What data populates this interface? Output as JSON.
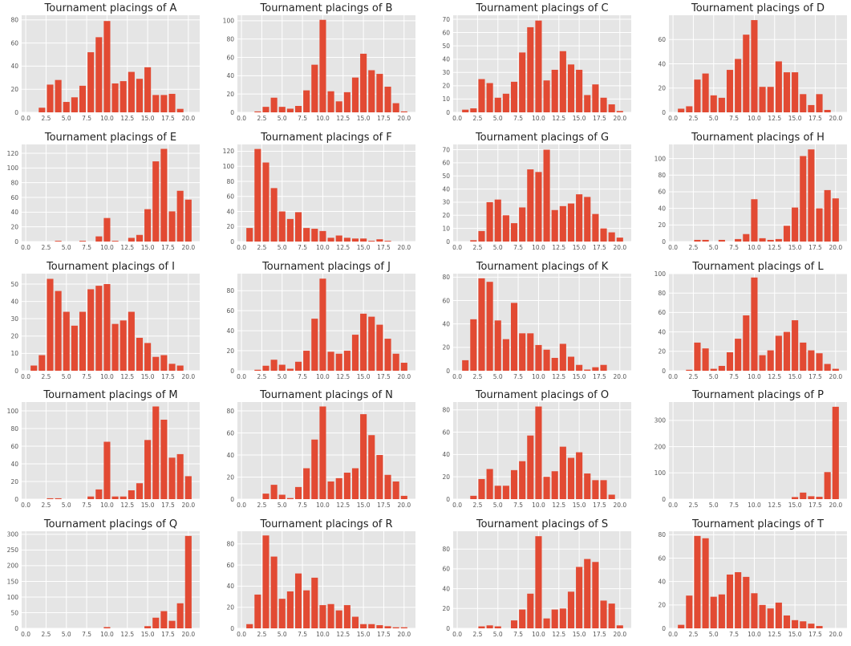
{
  "figure": {
    "background": "#ffffff",
    "panel_background": "#e5e5e5",
    "grid_color": "#ffffff",
    "bar_color": "#e24a33"
  },
  "chart_data": [
    {
      "type": "bar",
      "title": "Tournament placings of A",
      "categories": [
        1,
        2,
        3,
        4,
        5,
        6,
        7,
        8,
        9,
        10,
        11,
        12,
        13,
        14,
        15,
        16,
        17,
        18,
        19,
        20
      ],
      "values": [
        0,
        4,
        24,
        28,
        9,
        13,
        23,
        52,
        65,
        79,
        25,
        27,
        35,
        29,
        39,
        15,
        15,
        16,
        3,
        0
      ],
      "ylim": [
        0,
        84
      ],
      "yticks": [
        0,
        20,
        40,
        60,
        80
      ],
      "xticks": [
        0.0,
        2.5,
        5.0,
        7.5,
        10.0,
        12.5,
        15.0,
        17.5,
        20.0
      ],
      "grid": true
    },
    {
      "type": "bar",
      "title": "Tournament placings of B",
      "categories": [
        1,
        2,
        3,
        4,
        5,
        6,
        7,
        8,
        9,
        10,
        11,
        12,
        13,
        14,
        15,
        16,
        17,
        18,
        19,
        20
      ],
      "values": [
        0,
        1,
        6,
        16,
        6,
        4,
        7,
        24,
        52,
        101,
        23,
        12,
        22,
        38,
        64,
        46,
        42,
        28,
        10,
        1
      ],
      "ylim": [
        0,
        106
      ],
      "yticks": [
        0,
        20,
        40,
        60,
        80,
        100
      ],
      "xticks": [
        0.0,
        2.5,
        5.0,
        7.5,
        10.0,
        12.5,
        15.0,
        17.5,
        20.0
      ],
      "grid": true
    },
    {
      "type": "bar",
      "title": "Tournament placings of C",
      "categories": [
        1,
        2,
        3,
        4,
        5,
        6,
        7,
        8,
        9,
        10,
        11,
        12,
        13,
        14,
        15,
        16,
        17,
        18,
        19,
        20
      ],
      "values": [
        2,
        3,
        25,
        22,
        11,
        14,
        23,
        45,
        64,
        69,
        24,
        32,
        46,
        36,
        32,
        13,
        21,
        11,
        6,
        1
      ],
      "ylim": [
        0,
        73
      ],
      "yticks": [
        0,
        10,
        20,
        30,
        40,
        50,
        60,
        70
      ],
      "xticks": [
        0.0,
        2.5,
        5.0,
        7.5,
        10.0,
        12.5,
        15.0,
        17.5,
        20.0
      ],
      "grid": true
    },
    {
      "type": "bar",
      "title": "Tournament placings of D",
      "categories": [
        1,
        2,
        3,
        4,
        5,
        6,
        7,
        8,
        9,
        10,
        11,
        12,
        13,
        14,
        15,
        16,
        17,
        18,
        19,
        20
      ],
      "values": [
        3,
        5,
        27,
        32,
        14,
        12,
        35,
        44,
        64,
        76,
        21,
        21,
        42,
        33,
        33,
        15,
        6,
        15,
        2,
        0
      ],
      "ylim": [
        0,
        80
      ],
      "yticks": [
        0,
        20,
        40,
        60
      ],
      "xticks": [
        0.0,
        2.5,
        5.0,
        7.5,
        10.0,
        12.5,
        15.0,
        17.5,
        20.0
      ],
      "grid": true
    },
    {
      "type": "bar",
      "title": "Tournament placings of E",
      "categories": [
        1,
        2,
        3,
        4,
        5,
        6,
        7,
        8,
        9,
        10,
        11,
        12,
        13,
        14,
        15,
        16,
        17,
        18,
        19,
        20
      ],
      "values": [
        0,
        0,
        0,
        1,
        0,
        0,
        1,
        0,
        7,
        32,
        1,
        0,
        5,
        9,
        44,
        109,
        126,
        41,
        69,
        57
      ],
      "ylim": [
        0,
        132
      ],
      "yticks": [
        0,
        20,
        40,
        60,
        80,
        100,
        120
      ],
      "xticks": [
        0.0,
        2.5,
        5.0,
        7.5,
        10.0,
        12.5,
        15.0,
        17.5,
        20.0
      ],
      "grid": true
    },
    {
      "type": "bar",
      "title": "Tournament placings of F",
      "categories": [
        1,
        2,
        3,
        4,
        5,
        6,
        7,
        8,
        9,
        10,
        11,
        12,
        13,
        14,
        15,
        16,
        17,
        18,
        19,
        20
      ],
      "values": [
        18,
        123,
        105,
        71,
        40,
        30,
        39,
        18,
        17,
        14,
        5,
        8,
        5,
        4,
        4,
        1,
        3,
        1,
        0,
        0
      ],
      "ylim": [
        0,
        129
      ],
      "yticks": [
        0,
        20,
        40,
        60,
        80,
        100,
        120
      ],
      "xticks": [
        0.0,
        2.5,
        5.0,
        7.5,
        10.0,
        12.5,
        15.0,
        17.5,
        20.0
      ],
      "grid": true
    },
    {
      "type": "bar",
      "title": "Tournament placings of G",
      "categories": [
        1,
        2,
        3,
        4,
        5,
        6,
        7,
        8,
        9,
        10,
        11,
        12,
        13,
        14,
        15,
        16,
        17,
        18,
        19,
        20
      ],
      "values": [
        0,
        1,
        8,
        30,
        32,
        20,
        14,
        26,
        55,
        53,
        70,
        24,
        27,
        29,
        36,
        34,
        21,
        10,
        7,
        3
      ],
      "ylim": [
        0,
        74
      ],
      "yticks": [
        0,
        10,
        20,
        30,
        40,
        50,
        60,
        70
      ],
      "xticks": [
        0.0,
        2.5,
        5.0,
        7.5,
        10.0,
        12.5,
        15.0,
        17.5,
        20.0
      ],
      "grid": true
    },
    {
      "type": "bar",
      "title": "Tournament placings of H",
      "categories": [
        1,
        2,
        3,
        4,
        5,
        6,
        7,
        8,
        9,
        10,
        11,
        12,
        13,
        14,
        15,
        16,
        17,
        18,
        19,
        20
      ],
      "values": [
        0,
        0,
        2,
        2,
        0,
        2,
        0,
        3,
        9,
        51,
        4,
        2,
        3,
        19,
        41,
        103,
        111,
        40,
        62,
        52
      ],
      "ylim": [
        0,
        117
      ],
      "yticks": [
        0,
        20,
        40,
        60,
        80,
        100
      ],
      "xticks": [
        0.0,
        2.5,
        5.0,
        7.5,
        10.0,
        12.5,
        15.0,
        17.5,
        20.0
      ],
      "grid": true
    },
    {
      "type": "bar",
      "title": "Tournament placings of I",
      "categories": [
        1,
        2,
        3,
        4,
        5,
        6,
        7,
        8,
        9,
        10,
        11,
        12,
        13,
        14,
        15,
        16,
        17,
        18,
        19,
        20
      ],
      "values": [
        3,
        9,
        53,
        46,
        34,
        26,
        34,
        47,
        49,
        50,
        27,
        29,
        34,
        19,
        16,
        8,
        9,
        4,
        3,
        0
      ],
      "ylim": [
        0,
        56
      ],
      "yticks": [
        0,
        10,
        20,
        30,
        40,
        50
      ],
      "xticks": [
        0.0,
        2.5,
        5.0,
        7.5,
        10.0,
        12.5,
        15.0,
        17.5,
        20.0
      ],
      "grid": true
    },
    {
      "type": "bar",
      "title": "Tournament placings of J",
      "categories": [
        1,
        2,
        3,
        4,
        5,
        6,
        7,
        8,
        9,
        10,
        11,
        12,
        13,
        14,
        15,
        16,
        17,
        18,
        19,
        20
      ],
      "values": [
        0,
        1,
        5,
        11,
        6,
        2,
        9,
        20,
        52,
        92,
        19,
        17,
        20,
        36,
        57,
        54,
        46,
        32,
        17,
        8
      ],
      "ylim": [
        0,
        97
      ],
      "yticks": [
        0,
        20,
        40,
        60,
        80
      ],
      "xticks": [
        0.0,
        2.5,
        5.0,
        7.5,
        10.0,
        12.5,
        15.0,
        17.5,
        20.0
      ],
      "grid": true
    },
    {
      "type": "bar",
      "title": "Tournament placings of K",
      "categories": [
        1,
        2,
        3,
        4,
        5,
        6,
        7,
        8,
        9,
        10,
        11,
        12,
        13,
        14,
        15,
        16,
        17,
        18,
        19,
        20
      ],
      "values": [
        9,
        44,
        79,
        76,
        43,
        27,
        58,
        32,
        32,
        22,
        18,
        11,
        23,
        12,
        5,
        1,
        3,
        5,
        0,
        0
      ],
      "ylim": [
        0,
        83
      ],
      "yticks": [
        0,
        20,
        40,
        60,
        80
      ],
      "xticks": [
        0.0,
        2.5,
        5.0,
        7.5,
        10.0,
        12.5,
        15.0,
        17.5,
        20.0
      ],
      "grid": true
    },
    {
      "type": "bar",
      "title": "Tournament placings of L",
      "categories": [
        1,
        2,
        3,
        4,
        5,
        6,
        7,
        8,
        9,
        10,
        11,
        12,
        13,
        14,
        15,
        16,
        17,
        18,
        19,
        20
      ],
      "values": [
        0,
        1,
        29,
        23,
        2,
        5,
        19,
        33,
        57,
        96,
        16,
        21,
        36,
        40,
        52,
        29,
        21,
        18,
        7,
        2
      ],
      "ylim": [
        0,
        100
      ],
      "yticks": [
        0,
        20,
        40,
        60,
        80,
        100
      ],
      "xticks": [
        0.0,
        2.5,
        5.0,
        7.5,
        10.0,
        12.5,
        15.0,
        17.5,
        20.0
      ],
      "grid": true
    },
    {
      "type": "bar",
      "title": "Tournament placings of M",
      "categories": [
        1,
        2,
        3,
        4,
        5,
        6,
        7,
        8,
        9,
        10,
        11,
        12,
        13,
        14,
        15,
        16,
        17,
        18,
        19,
        20
      ],
      "values": [
        0,
        0,
        1,
        1,
        0,
        0,
        0,
        3,
        11,
        65,
        3,
        3,
        10,
        18,
        67,
        105,
        90,
        47,
        51,
        26
      ],
      "ylim": [
        0,
        110
      ],
      "yticks": [
        0,
        20,
        40,
        60,
        80,
        100
      ],
      "xticks": [
        0.0,
        2.5,
        5.0,
        7.5,
        10.0,
        12.5,
        15.0,
        17.5,
        20.0
      ],
      "grid": true
    },
    {
      "type": "bar",
      "title": "Tournament placings of N",
      "categories": [
        1,
        2,
        3,
        4,
        5,
        6,
        7,
        8,
        9,
        10,
        11,
        12,
        13,
        14,
        15,
        16,
        17,
        18,
        19,
        20
      ],
      "values": [
        0,
        0,
        5,
        13,
        4,
        1,
        11,
        28,
        54,
        84,
        16,
        19,
        24,
        28,
        77,
        58,
        40,
        22,
        16,
        3
      ],
      "ylim": [
        0,
        88
      ],
      "yticks": [
        0,
        20,
        40,
        60,
        80
      ],
      "xticks": [
        0.0,
        2.5,
        5.0,
        7.5,
        10.0,
        12.5,
        15.0,
        17.5,
        20.0
      ],
      "grid": true
    },
    {
      "type": "bar",
      "title": "Tournament placings of O",
      "categories": [
        1,
        2,
        3,
        4,
        5,
        6,
        7,
        8,
        9,
        10,
        11,
        12,
        13,
        14,
        15,
        16,
        17,
        18,
        19,
        20
      ],
      "values": [
        0,
        3,
        18,
        27,
        12,
        12,
        26,
        34,
        57,
        83,
        20,
        25,
        47,
        37,
        42,
        23,
        17,
        17,
        4,
        0
      ],
      "ylim": [
        0,
        87
      ],
      "yticks": [
        0,
        20,
        40,
        60,
        80
      ],
      "xticks": [
        0.0,
        2.5,
        5.0,
        7.5,
        10.0,
        12.5,
        15.0,
        17.5,
        20.0
      ],
      "grid": true
    },
    {
      "type": "bar",
      "title": "Tournament placings of P",
      "categories": [
        1,
        2,
        3,
        4,
        5,
        6,
        7,
        8,
        9,
        10,
        11,
        12,
        13,
        14,
        15,
        16,
        17,
        18,
        19,
        20
      ],
      "values": [
        0,
        0,
        0,
        0,
        0,
        0,
        0,
        0,
        0,
        0,
        0,
        0,
        0,
        0,
        8,
        25,
        11,
        9,
        103,
        352
      ],
      "ylim": [
        0,
        370
      ],
      "yticks": [
        0,
        100,
        200,
        300
      ],
      "xticks": [
        0.0,
        2.5,
        5.0,
        7.5,
        10.0,
        12.5,
        15.0,
        17.5,
        20.0
      ],
      "grid": true
    },
    {
      "type": "bar",
      "title": "Tournament placings of Q",
      "categories": [
        1,
        2,
        3,
        4,
        5,
        6,
        7,
        8,
        9,
        10,
        11,
        12,
        13,
        14,
        15,
        16,
        17,
        18,
        19,
        20
      ],
      "values": [
        0,
        0,
        0,
        0,
        0,
        0,
        0,
        0,
        0,
        4,
        0,
        0,
        0,
        0,
        7,
        34,
        55,
        24,
        80,
        295
      ],
      "ylim": [
        0,
        310
      ],
      "yticks": [
        0,
        50,
        100,
        150,
        200,
        250,
        300
      ],
      "xticks": [
        0.0,
        2.5,
        5.0,
        7.5,
        10.0,
        12.5,
        15.0,
        17.5,
        20.0
      ],
      "grid": true
    },
    {
      "type": "bar",
      "title": "Tournament placings of R",
      "categories": [
        1,
        2,
        3,
        4,
        5,
        6,
        7,
        8,
        9,
        10,
        11,
        12,
        13,
        14,
        15,
        16,
        17,
        18,
        19,
        20
      ],
      "values": [
        4,
        32,
        88,
        68,
        28,
        35,
        52,
        36,
        48,
        22,
        23,
        17,
        22,
        11,
        4,
        4,
        3,
        2,
        1,
        1
      ],
      "ylim": [
        0,
        92
      ],
      "yticks": [
        0,
        20,
        40,
        60,
        80
      ],
      "xticks": [
        0.0,
        2.5,
        5.0,
        7.5,
        10.0,
        12.5,
        15.0,
        17.5,
        20.0
      ],
      "grid": true
    },
    {
      "type": "bar",
      "title": "Tournament placings of S",
      "categories": [
        1,
        2,
        3,
        4,
        5,
        6,
        7,
        8,
        9,
        10,
        11,
        12,
        13,
        14,
        15,
        16,
        17,
        18,
        19,
        20
      ],
      "values": [
        0,
        0,
        2,
        3,
        2,
        0,
        8,
        19,
        35,
        93,
        10,
        19,
        20,
        37,
        62,
        70,
        67,
        28,
        25,
        3
      ],
      "ylim": [
        0,
        98
      ],
      "yticks": [
        0,
        20,
        40,
        60,
        80
      ],
      "xticks": [
        0.0,
        2.5,
        5.0,
        7.5,
        10.0,
        12.5,
        15.0,
        17.5,
        20.0
      ],
      "grid": true
    },
    {
      "type": "bar",
      "title": "Tournament placings of T",
      "categories": [
        1,
        2,
        3,
        4,
        5,
        6,
        7,
        8,
        9,
        10,
        11,
        12,
        13,
        14,
        15,
        16,
        17,
        18,
        19,
        20
      ],
      "values": [
        3,
        28,
        79,
        77,
        27,
        29,
        46,
        48,
        44,
        30,
        20,
        17,
        22,
        11,
        7,
        6,
        4,
        2,
        0,
        0
      ],
      "ylim": [
        0,
        83
      ],
      "yticks": [
        0,
        20,
        40,
        60,
        80
      ],
      "xticks": [
        0.0,
        2.5,
        5.0,
        7.5,
        10.0,
        12.5,
        15.0,
        17.5,
        20.0
      ],
      "grid": true
    }
  ]
}
